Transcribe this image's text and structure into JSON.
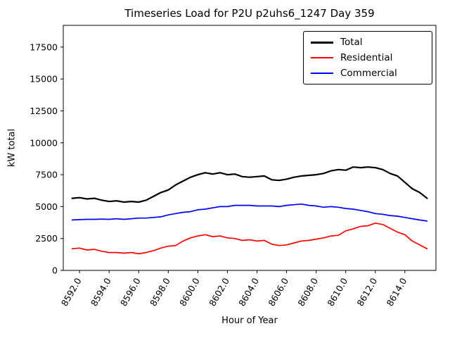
{
  "figure": {
    "title": "Timeseries Load for P2U p2uhs6_1247  Day 359",
    "xlabel": "Hour of Year",
    "ylabel": "kW total"
  },
  "chart_data": {
    "type": "line",
    "title": "Timeseries Load for P2U p2uhs6_1247  Day 359",
    "xlabel": "Hour of Year",
    "ylabel": "kW total",
    "xlim": [
      8590.9,
      8616.1
    ],
    "ylim": [
      0,
      19200
    ],
    "grid": false,
    "legend_position": "upper right",
    "x_ticks": [
      8592,
      8594,
      8596,
      8598,
      8600,
      8602,
      8604,
      8606,
      8608,
      8610,
      8612,
      8614
    ],
    "x_tick_labels": [
      "8592.0",
      "8594.0",
      "8596.0",
      "8598.0",
      "8600.0",
      "8602.0",
      "8604.0",
      "8606.0",
      "8608.0",
      "8610.0",
      "8612.0",
      "8614.0"
    ],
    "y_ticks": [
      0,
      2500,
      5000,
      7500,
      10000,
      12500,
      15000,
      17500
    ],
    "y_tick_labels": [
      "0",
      "2500",
      "5000",
      "7500",
      "10000",
      "12500",
      "15000",
      "17500"
    ],
    "x": [
      8591.5,
      8592.0,
      8592.5,
      8593.0,
      8593.5,
      8594.0,
      8594.5,
      8595.0,
      8595.5,
      8596.0,
      8596.5,
      8597.0,
      8597.5,
      8598.0,
      8598.5,
      8599.0,
      8599.5,
      8600.0,
      8600.5,
      8601.0,
      8601.5,
      8602.0,
      8602.5,
      8603.0,
      8603.5,
      8604.0,
      8604.5,
      8605.0,
      8605.5,
      8606.0,
      8606.5,
      8607.0,
      8607.5,
      8608.0,
      8608.5,
      8609.0,
      8609.5,
      8610.0,
      8610.5,
      8611.0,
      8611.5,
      8612.0,
      8612.5,
      8613.0,
      8613.5,
      8614.0,
      8614.5,
      8615.0,
      8615.5
    ],
    "series": [
      {
        "name": "Total",
        "color": "#000000",
        "values": [
          5650,
          5700,
          5600,
          5650,
          5500,
          5400,
          5450,
          5350,
          5400,
          5350,
          5500,
          5800,
          6100,
          6300,
          6700,
          7000,
          7300,
          7500,
          7650,
          7550,
          7650,
          7500,
          7550,
          7350,
          7300,
          7350,
          7400,
          7100,
          7050,
          7150,
          7300,
          7400,
          7450,
          7500,
          7600,
          7800,
          7900,
          7850,
          8100,
          8050,
          8100,
          8050,
          7900,
          7600,
          7400,
          6900,
          6400,
          6100,
          5650
        ]
      },
      {
        "name": "Residential",
        "color": "#ff0000",
        "values": [
          1700,
          1750,
          1600,
          1650,
          1500,
          1400,
          1400,
          1350,
          1400,
          1300,
          1400,
          1550,
          1750,
          1900,
          1950,
          2300,
          2550,
          2700,
          2800,
          2650,
          2700,
          2550,
          2500,
          2350,
          2400,
          2300,
          2350,
          2050,
          1950,
          2000,
          2150,
          2300,
          2350,
          2450,
          2550,
          2700,
          2750,
          3100,
          3250,
          3450,
          3500,
          3700,
          3600,
          3300,
          3000,
          2800,
          2300,
          2000,
          1700
        ]
      },
      {
        "name": "Commercial",
        "color": "#0000ff",
        "values": [
          3950,
          3980,
          4000,
          4000,
          4020,
          4000,
          4050,
          4000,
          4050,
          4100,
          4100,
          4150,
          4200,
          4350,
          4450,
          4550,
          4600,
          4750,
          4800,
          4900,
          5000,
          5000,
          5100,
          5100,
          5100,
          5050,
          5050,
          5050,
          5000,
          5100,
          5150,
          5200,
          5100,
          5050,
          4950,
          5000,
          4950,
          4850,
          4800,
          4700,
          4600,
          4450,
          4400,
          4300,
          4250,
          4150,
          4050,
          3950,
          3870
        ]
      }
    ]
  }
}
